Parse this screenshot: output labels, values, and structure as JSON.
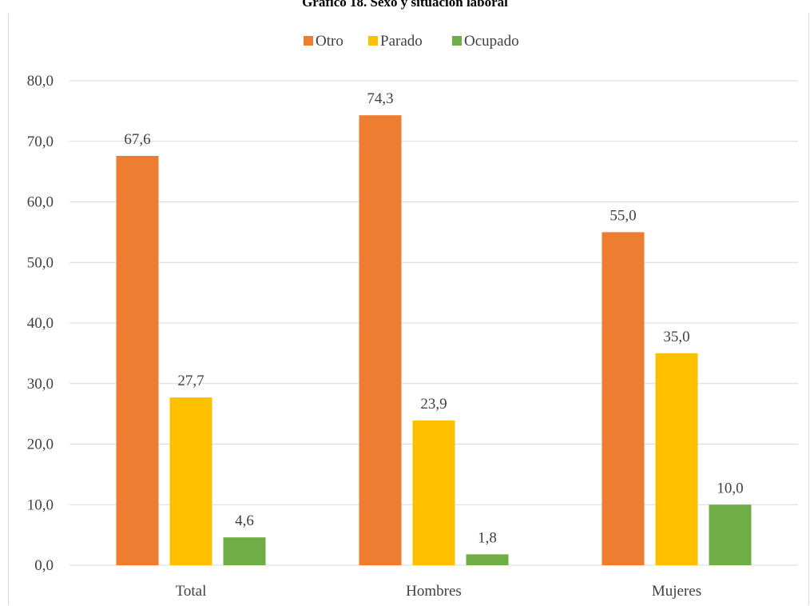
{
  "chart_data": {
    "type": "bar",
    "title": "Gráfico 18. Sexo y situación laboral",
    "categories": [
      "Total",
      "Hombres",
      "Mujeres"
    ],
    "series": [
      {
        "name": "Otro",
        "values": [
          67.6,
          74.3,
          55.0
        ],
        "labels": [
          "67,6",
          "74,3",
          "55,0"
        ],
        "color": "#ed7d31"
      },
      {
        "name": "Parado",
        "values": [
          27.7,
          23.9,
          35.0
        ],
        "labels": [
          "27,7",
          "23,9",
          "35,0"
        ],
        "color": "#ffc000"
      },
      {
        "name": "Ocupado",
        "values": [
          4.6,
          1.8,
          10.0
        ],
        "labels": [
          "4,6",
          "1,8",
          "10,0"
        ],
        "color": "#70ad47"
      }
    ],
    "y_ticks": [
      "0,0",
      "10,0",
      "20,0",
      "30,0",
      "40,0",
      "50,0",
      "60,0",
      "70,0",
      "80,0"
    ],
    "ylim": [
      0,
      80
    ],
    "grid": true,
    "gridline_color": "#d9d9d9",
    "legend_position": "top"
  }
}
